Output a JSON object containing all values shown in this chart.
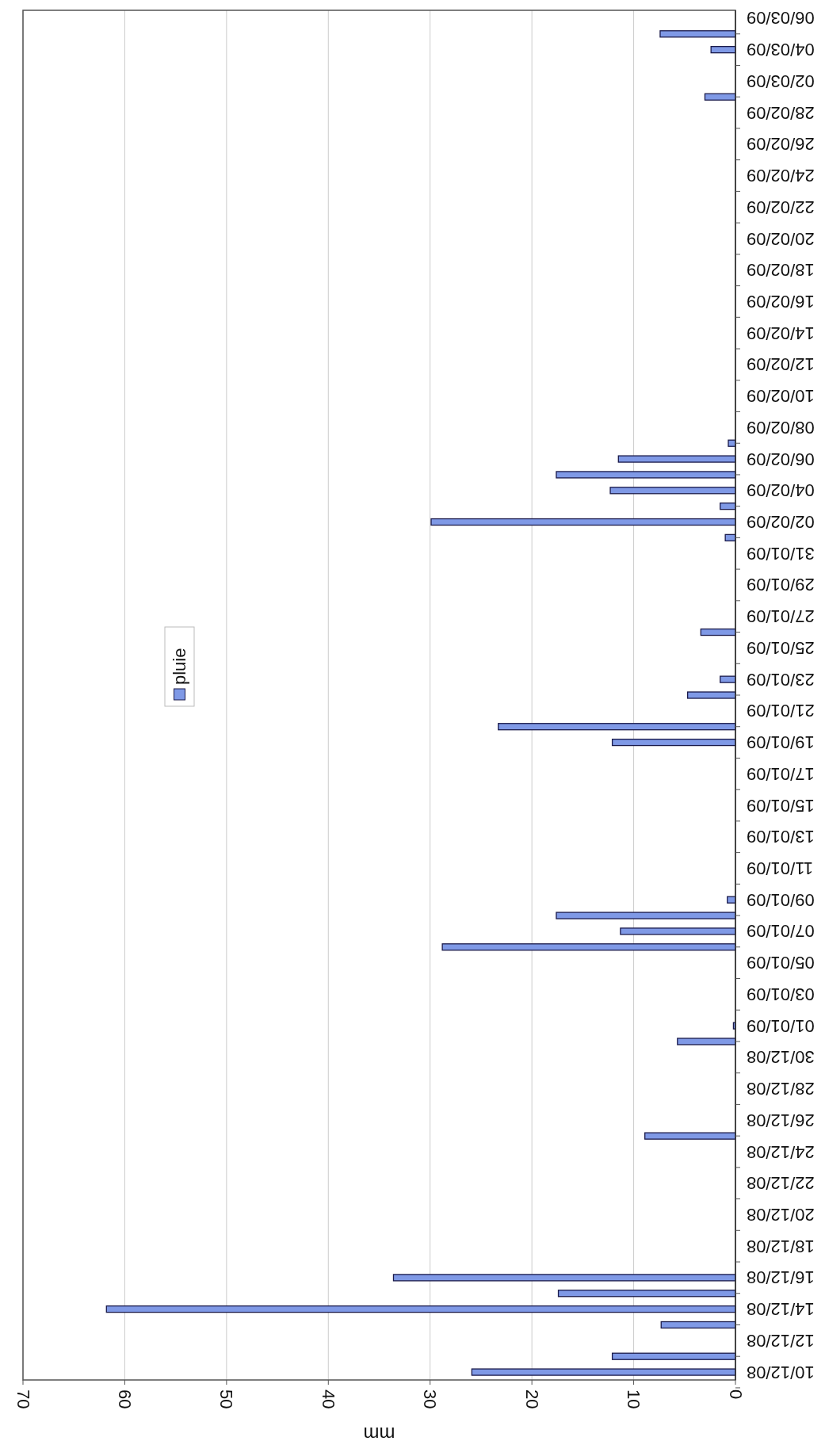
{
  "chart_data": {
    "type": "bar",
    "orientation": "horizontal",
    "xlabel": "mm",
    "categories": [
      "06/03/09",
      null,
      "04/03/09",
      null,
      "02/03/09",
      null,
      "28/02/09",
      null,
      "26/02/09",
      null,
      "24/02/09",
      null,
      "22/02/09",
      null,
      "20/02/09",
      null,
      "18/02/09",
      null,
      "16/02/09",
      null,
      "14/02/09",
      null,
      "12/02/09",
      null,
      "10/02/09",
      null,
      "08/02/09",
      null,
      "06/02/09",
      null,
      "04/02/09",
      null,
      "02/02/09",
      null,
      "31/01/09",
      null,
      "29/01/09",
      null,
      "27/01/09",
      null,
      "25/01/09",
      null,
      "23/01/09",
      null,
      "21/01/09",
      null,
      "19/01/09",
      null,
      "17/01/09",
      null,
      "15/01/09",
      null,
      "13/01/09",
      null,
      "11/01/09",
      null,
      "09/01/09",
      null,
      "07/01/09",
      null,
      "05/01/09",
      null,
      "03/01/09",
      null,
      "01/01/09",
      null,
      "30/12/08",
      null,
      "28/12/08",
      null,
      "26/12/08",
      null,
      "24/12/08",
      null,
      "22/12/08",
      null,
      "20/12/08",
      null,
      "18/12/08",
      null,
      "16/12/08",
      null,
      "14/12/08",
      null,
      "12/12/08",
      null,
      "10/12/08"
    ],
    "series": [
      {
        "name": "pluie",
        "color": "#7f99e6",
        "values": [
          0,
          7.4,
          2.4,
          0,
          0,
          3.0,
          0,
          0,
          0,
          0,
          0,
          0,
          0,
          0,
          0,
          0,
          0,
          0,
          0,
          0,
          0,
          0,
          0,
          0,
          0,
          0,
          0,
          0.7,
          11.5,
          17.6,
          12.3,
          1.5,
          29.9,
          1.0,
          0,
          0,
          0,
          0,
          0,
          3.4,
          0,
          0,
          1.5,
          4.7,
          0,
          23.3,
          12.1,
          0,
          0,
          0,
          0,
          0,
          0,
          0,
          0,
          0,
          0.8,
          17.6,
          11.3,
          28.8,
          0,
          0,
          0,
          0,
          0.2,
          5.7,
          0,
          0,
          0,
          0,
          0,
          8.9,
          0,
          0,
          0,
          0,
          0,
          0,
          0,
          0,
          33.6,
          17.4,
          61.8,
          7.3,
          0,
          12.1,
          25.9
        ]
      }
    ],
    "xlim": [
      70,
      0
    ],
    "xticks": [
      0,
      10,
      20,
      30,
      40,
      50,
      60,
      70
    ],
    "grid": "x",
    "legend": "left"
  }
}
